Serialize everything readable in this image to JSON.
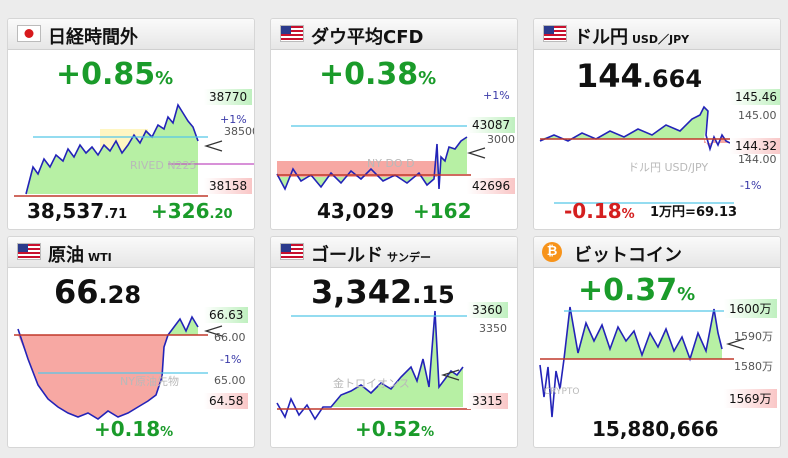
{
  "cards": [
    {
      "title": "日経時間外",
      "subtitle": "",
      "flag": "jp-flag-icon",
      "change_main": "+0.85",
      "change_unit": "%",
      "high": "38770",
      "low": "38158",
      "pct_up": "+1%",
      "pct_down": "",
      "ref": "38500",
      "watermark": "RIVED N225",
      "price_main": "38,537",
      "price_dec": ".71",
      "change_abs_main": "+326",
      "change_abs_dec": ".20",
      "extra": ""
    },
    {
      "title": "ダウ平均CFD",
      "subtitle": "",
      "flag": "us-flag-icon",
      "change_main": "+0.38",
      "change_unit": "%",
      "high": "43087",
      "low": "42696",
      "pct_up": "+1%",
      "pct_down": "",
      "ref": "3000",
      "watermark": "NY DO   D",
      "price_main": "43,029",
      "price_dec": "",
      "change_abs_main": "+162",
      "change_abs_dec": "",
      "extra": ""
    },
    {
      "title": "ドル円",
      "subtitle": "USD／JPY",
      "flag": "us-flag-icon",
      "price_big_main": "144",
      "price_big_dec": ".664",
      "high": "145.46",
      "low": "144.32",
      "pct_up": "",
      "pct_down": "-1%",
      "ref": "145.00",
      "ref2": "144.00",
      "watermark": "ドル円 USD/JPY",
      "change_main": "-0.18",
      "change_unit": "%",
      "extra": "1万円=69.13"
    },
    {
      "title": "原油",
      "subtitle": "WTI",
      "flag": "us-flag-icon",
      "price_big_main": "66",
      "price_big_dec": ".28",
      "high": "66.63",
      "low": "64.58",
      "pct_up": "",
      "pct_down": "-1%",
      "ref": "66.00",
      "ref2": "65.00",
      "watermark": "NY原油先物",
      "change_main": "+0.18",
      "change_unit": "%",
      "extra": ""
    },
    {
      "title": "ゴールド",
      "subtitle": "サンデー",
      "flag": "us-flag-icon",
      "price_big_main": "3,342",
      "price_big_dec": ".15",
      "high": "3360",
      "low": "3315",
      "pct_up": "",
      "pct_down": "",
      "ref": "3350",
      "ref2": "",
      "watermark": "金トロイオンス",
      "change_main": "+0.52",
      "change_unit": "%",
      "extra": ""
    },
    {
      "title": "ビットコイン",
      "subtitle": "",
      "flag": "bitcoin-icon",
      "change_main": "+0.37",
      "change_unit": "%",
      "high": "1600万",
      "low": "1569万",
      "pct_up": "",
      "pct_down": "",
      "ref": "1590万",
      "ref2": "1580万",
      "watermark": "CRYPTO",
      "price_main": "15,880,666",
      "price_dec": "",
      "extra": ""
    }
  ],
  "colors": {
    "up": "#1a9b2a",
    "down": "#d41f1f",
    "line": "#2323b8",
    "ref_line": "#c0392b",
    "pct_line": "#55c6e8"
  }
}
